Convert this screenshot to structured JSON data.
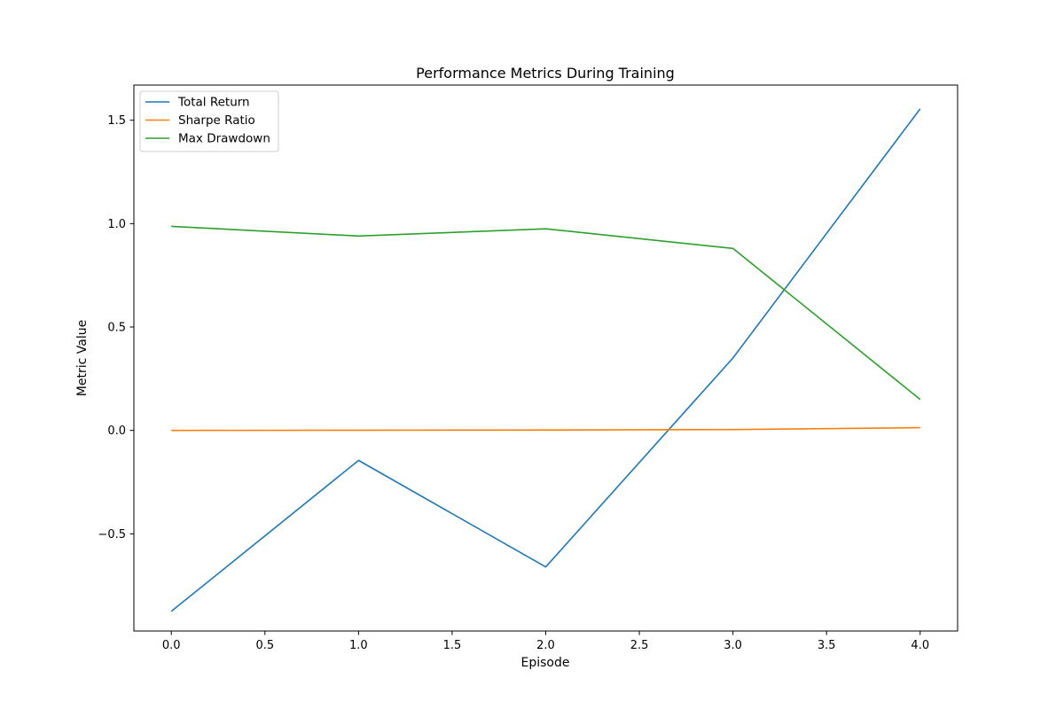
{
  "chart_data": {
    "type": "line",
    "title": "Performance Metrics During Training",
    "xlabel": "Episode",
    "ylabel": "Metric Value",
    "x": [
      0,
      1,
      2,
      3,
      4
    ],
    "series": [
      {
        "name": "Total Return",
        "color": "#1f77b4",
        "values": [
          -0.875,
          -0.145,
          -0.66,
          0.35,
          1.555
        ]
      },
      {
        "name": "Sharpe Ratio",
        "color": "#ff7f0e",
        "values": [
          0.0,
          0.001,
          0.002,
          0.004,
          0.013
        ]
      },
      {
        "name": "Max Drawdown",
        "color": "#2ca02c",
        "values": [
          0.987,
          0.94,
          0.975,
          0.88,
          0.15
        ]
      }
    ],
    "xlim": [
      -0.2,
      4.2
    ],
    "ylim": [
      -0.97,
      1.67
    ],
    "xticks": [
      0.0,
      0.5,
      1.0,
      1.5,
      2.0,
      2.5,
      3.0,
      3.5,
      4.0
    ],
    "xtick_labels": [
      "0.0",
      "0.5",
      "1.0",
      "1.5",
      "2.0",
      "2.5",
      "3.0",
      "3.5",
      "4.0"
    ],
    "yticks": [
      -0.5,
      0.0,
      0.5,
      1.0,
      1.5
    ],
    "ytick_labels": [
      "−0.5",
      "0.0",
      "0.5",
      "1.0",
      "1.5"
    ],
    "grid": false,
    "legend_position": "top-left"
  }
}
